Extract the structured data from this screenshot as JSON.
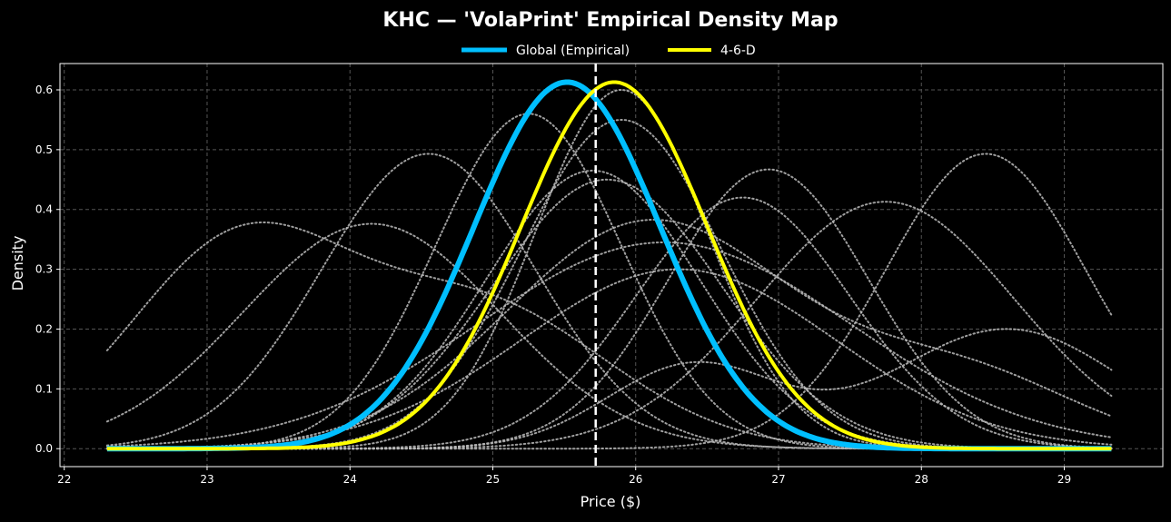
{
  "chart_data": {
    "type": "line",
    "title": "KHC — 'VolaPrint' Empirical Density Map",
    "xlabel": "Price ($)",
    "ylabel": "Density",
    "xlim": [
      21.97,
      29.69
    ],
    "ylim": [
      -0.03,
      0.644
    ],
    "xticks": [
      22,
      23,
      24,
      25,
      26,
      27,
      28,
      29
    ],
    "yticks": [
      0.0,
      0.1,
      0.2,
      0.3,
      0.4,
      0.5,
      0.6
    ],
    "ytick_labels": [
      "0.0",
      "0.1",
      "0.2",
      "0.3",
      "0.4",
      "0.5",
      "0.6"
    ],
    "grid": true,
    "legend_position": "top-center",
    "x_range": [
      22.3,
      29.33
    ],
    "reference_line": {
      "x": 25.72,
      "style": "dashed",
      "color": "#ffffff"
    },
    "series": [
      {
        "name": "Global (Empirical)",
        "color": "#00bfff",
        "kind": "gaussian",
        "components": [
          [
            0.613,
            25.52,
            0.651
          ]
        ]
      },
      {
        "name": "4-6-D",
        "color": "#ffff00",
        "kind": "gaussian",
        "components": [
          [
            0.613,
            25.85,
            0.651
          ]
        ]
      }
    ],
    "background_series_color": "#bbbbbb",
    "background_series": [
      [
        [
          0.33,
          23.2,
          0.75
        ],
        [
          0.24,
          24.9,
          0.9
        ]
      ],
      [
        [
          0.376,
          24.15,
          0.9
        ]
      ],
      [
        [
          0.493,
          24.55,
          0.75
        ]
      ],
      [
        [
          0.56,
          25.25,
          0.65
        ]
      ],
      [
        [
          0.6,
          25.9,
          0.6
        ]
      ],
      [
        [
          0.55,
          25.9,
          0.7
        ]
      ],
      [
        [
          0.465,
          25.7,
          0.75
        ]
      ],
      [
        [
          0.45,
          25.8,
          0.8
        ]
      ],
      [
        [
          0.467,
          26.93,
          0.7
        ]
      ],
      [
        [
          0.42,
          26.75,
          0.75
        ]
      ],
      [
        [
          0.413,
          27.75,
          0.9
        ]
      ],
      [
        [
          0.493,
          28.45,
          0.7
        ]
      ],
      [
        [
          0.345,
          26.2,
          1.3
        ]
      ],
      [
        [
          0.14,
          26.4,
          0.6
        ],
        [
          0.2,
          28.6,
          0.8
        ]
      ],
      [
        [
          0.38,
          26.1,
          1.0
        ],
        [
          0.12,
          28.3,
          0.8
        ]
      ],
      [
        [
          0.3,
          26.3,
          1.1
        ]
      ]
    ]
  }
}
